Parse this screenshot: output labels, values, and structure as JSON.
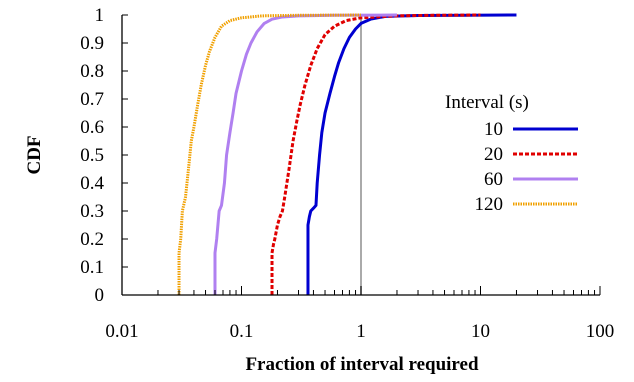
{
  "chart_data": {
    "type": "line",
    "xlabel": "Fraction of interval required",
    "ylabel": "CDF",
    "xscale": "log",
    "xlim": [
      0.01,
      100
    ],
    "ylim": [
      0,
      1
    ],
    "x_ticks": [
      "0.01",
      "0.1",
      "1",
      "10",
      "100"
    ],
    "y_ticks": [
      "0",
      "0.1",
      "0.2",
      "0.3",
      "0.4",
      "0.5",
      "0.6",
      "0.7",
      "0.8",
      "0.9",
      "1"
    ],
    "grid": false,
    "reference_line_x": 1,
    "legend": {
      "title": "Interval (s)",
      "placement": "right"
    },
    "series": [
      {
        "name": "10",
        "color": "#0000d0",
        "dash": "solid",
        "points": [
          [
            0.36,
            0
          ],
          [
            0.36,
            0.25
          ],
          [
            0.37,
            0.28
          ],
          [
            0.38,
            0.3
          ],
          [
            0.4,
            0.31
          ],
          [
            0.42,
            0.32
          ],
          [
            0.43,
            0.4
          ],
          [
            0.45,
            0.5
          ],
          [
            0.47,
            0.58
          ],
          [
            0.5,
            0.65
          ],
          [
            0.55,
            0.72
          ],
          [
            0.6,
            0.78
          ],
          [
            0.65,
            0.83
          ],
          [
            0.72,
            0.88
          ],
          [
            0.8,
            0.92
          ],
          [
            0.9,
            0.95
          ],
          [
            1.0,
            0.97
          ],
          [
            1.2,
            0.985
          ],
          [
            1.6,
            0.995
          ],
          [
            3,
            0.998
          ],
          [
            8,
            0.999
          ],
          [
            20,
            1.0
          ]
        ]
      },
      {
        "name": "20",
        "color": "#e00000",
        "dash": "dashed",
        "points": [
          [
            0.18,
            0
          ],
          [
            0.18,
            0.15
          ],
          [
            0.185,
            0.18
          ],
          [
            0.19,
            0.2
          ],
          [
            0.2,
            0.25
          ],
          [
            0.21,
            0.28
          ],
          [
            0.22,
            0.3
          ],
          [
            0.23,
            0.35
          ],
          [
            0.25,
            0.45
          ],
          [
            0.27,
            0.55
          ],
          [
            0.29,
            0.62
          ],
          [
            0.31,
            0.68
          ],
          [
            0.34,
            0.75
          ],
          [
            0.38,
            0.82
          ],
          [
            0.43,
            0.88
          ],
          [
            0.5,
            0.93
          ],
          [
            0.6,
            0.96
          ],
          [
            0.75,
            0.98
          ],
          [
            1.0,
            0.99
          ],
          [
            2,
            0.997
          ],
          [
            4,
            0.999
          ],
          [
            10,
            1.0
          ]
        ]
      },
      {
        "name": "60",
        "color": "#b080f0",
        "dash": "solid",
        "points": [
          [
            0.06,
            0
          ],
          [
            0.06,
            0.15
          ],
          [
            0.062,
            0.2
          ],
          [
            0.065,
            0.3
          ],
          [
            0.068,
            0.32
          ],
          [
            0.072,
            0.4
          ],
          [
            0.075,
            0.5
          ],
          [
            0.08,
            0.58
          ],
          [
            0.085,
            0.65
          ],
          [
            0.09,
            0.72
          ],
          [
            0.1,
            0.8
          ],
          [
            0.11,
            0.86
          ],
          [
            0.12,
            0.9
          ],
          [
            0.135,
            0.94
          ],
          [
            0.155,
            0.97
          ],
          [
            0.18,
            0.985
          ],
          [
            0.22,
            0.993
          ],
          [
            0.3,
            0.997
          ],
          [
            0.6,
            0.999
          ],
          [
            2,
            1.0
          ]
        ]
      },
      {
        "name": "120",
        "color": "#f0a000",
        "dash": "dotted",
        "points": [
          [
            0.03,
            0
          ],
          [
            0.03,
            0.15
          ],
          [
            0.031,
            0.2
          ],
          [
            0.032,
            0.3
          ],
          [
            0.034,
            0.35
          ],
          [
            0.036,
            0.45
          ],
          [
            0.038,
            0.55
          ],
          [
            0.04,
            0.6
          ],
          [
            0.043,
            0.68
          ],
          [
            0.046,
            0.75
          ],
          [
            0.05,
            0.82
          ],
          [
            0.054,
            0.87
          ],
          [
            0.06,
            0.92
          ],
          [
            0.068,
            0.96
          ],
          [
            0.08,
            0.98
          ],
          [
            0.1,
            0.99
          ],
          [
            0.15,
            0.997
          ],
          [
            0.3,
            0.999
          ],
          [
            1,
            1.0
          ]
        ]
      }
    ]
  }
}
